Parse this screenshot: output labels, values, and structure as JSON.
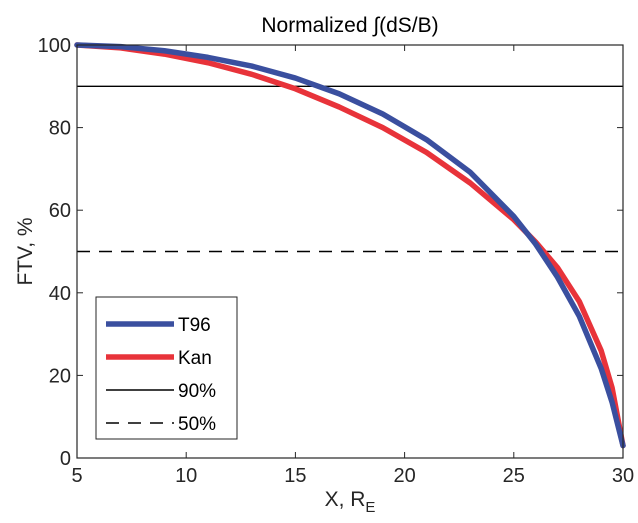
{
  "chart_data": {
    "type": "line",
    "title": "Normalized ∫(dS/B)",
    "xlabel": "X, R",
    "xlabel_sub": "E",
    "ylabel": "FTV, %",
    "xlim": [
      5,
      30
    ],
    "ylim": [
      0,
      100
    ],
    "xticks": [
      "5",
      "10",
      "15",
      "20",
      "25",
      "30"
    ],
    "yticks": [
      "0",
      "20",
      "40",
      "60",
      "80",
      "100"
    ],
    "grid": false,
    "legend_position": "bottom-left",
    "series": [
      {
        "name": "T96",
        "color": "#3a4f9f",
        "x": [
          5,
          7,
          9,
          11,
          13,
          15,
          17,
          19,
          21,
          23,
          25,
          26,
          27,
          28,
          29,
          29.5,
          30
        ],
        "y": [
          100,
          99.6,
          98.6,
          97,
          94.9,
          92,
          88.2,
          83.3,
          77.1,
          69.2,
          58.5,
          51.8,
          43.8,
          34.3,
          21.7,
          13.5,
          3
        ]
      },
      {
        "name": "Kan",
        "color": "#e8333a",
        "x": [
          5,
          7,
          9,
          11,
          13,
          15,
          17,
          19,
          21,
          23,
          25,
          26,
          27,
          28,
          29,
          29.5,
          30
        ],
        "y": [
          100,
          99.3,
          97.8,
          95.7,
          92.9,
          89.4,
          85,
          80,
          74,
          66.6,
          57.7,
          52.3,
          46.1,
          37.9,
          26,
          17,
          3
        ]
      },
      {
        "name": "90%",
        "color": "#000000",
        "style": "solid",
        "x": [
          5,
          30
        ],
        "y": [
          90,
          90
        ]
      },
      {
        "name": "50%",
        "color": "#000000",
        "style": "dashed",
        "x": [
          5,
          30
        ],
        "y": [
          50,
          50
        ]
      }
    ]
  }
}
